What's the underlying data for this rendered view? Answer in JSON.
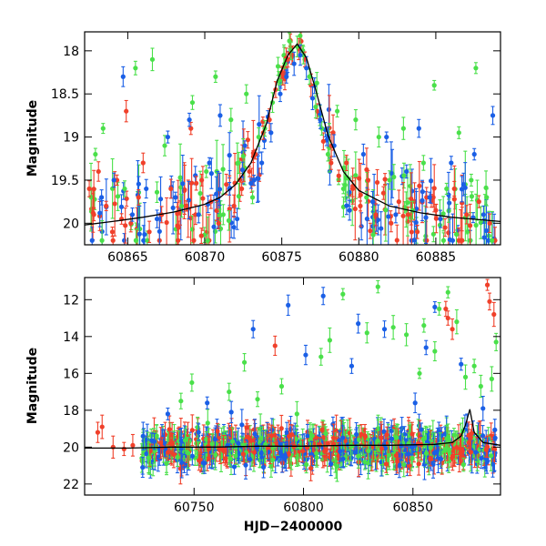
{
  "chart_data": [
    {
      "type": "scatter",
      "title": "",
      "xlabel": "",
      "ylabel": "Magnitude",
      "xlim": [
        60862.2,
        60889.2
      ],
      "ylim": [
        20.25,
        17.78
      ],
      "y_inverted": true,
      "x_ticks": [
        60865,
        60870,
        60875,
        60880,
        60885
      ],
      "y_ticks": [
        18,
        18.5,
        19,
        19.5,
        20
      ],
      "x_tick_labels": [
        "60865",
        "60870",
        "60875",
        "60880",
        "60885"
      ],
      "y_tick_labels": [
        "18",
        "18.5",
        "19",
        "19.5",
        "20"
      ],
      "grid": false,
      "colors": {
        "red": "#f0402a",
        "green": "#4ae04a",
        "blue": "#1a5fe6",
        "model": "#000000"
      },
      "model_curve": {
        "x": [
          60862.2,
          60864,
          60866,
          60868,
          60870,
          60871,
          60872,
          60873,
          60874,
          60874.7,
          60875.4,
          60876,
          60876.6,
          60877.2,
          60878,
          60879,
          60880,
          60882,
          60884,
          60886,
          60889.2
        ],
        "y": [
          20.02,
          19.98,
          19.93,
          19.87,
          19.78,
          19.7,
          19.55,
          19.3,
          18.85,
          18.35,
          18.05,
          17.92,
          18.08,
          18.45,
          18.98,
          19.4,
          19.62,
          19.8,
          19.88,
          19.93,
          19.98
        ]
      },
      "series": [
        {
          "color": "red",
          "points": [
            [
              60862.5,
              19.6
            ],
            [
              60862.8,
              19.9
            ],
            [
              60863.1,
              19.4
            ],
            [
              60863.6,
              19.8
            ],
            [
              60864.0,
              20.1
            ],
            [
              60864.3,
              19.5
            ],
            [
              60864.6,
              19.95
            ],
            [
              60865.2,
              20.0
            ],
            [
              60865.7,
              19.7
            ],
            [
              60866.0,
              19.3
            ],
            [
              60866.4,
              20.1
            ],
            [
              60867.2,
              19.9
            ],
            [
              60867.8,
              19.6
            ],
            [
              60868.3,
              20.05
            ],
            [
              60868.8,
              19.8
            ],
            [
              60869.4,
              19.9
            ],
            [
              60869.8,
              19.5
            ],
            [
              60870.4,
              19.75
            ],
            [
              60870.9,
              20.0
            ],
            [
              60871.4,
              19.55
            ],
            [
              60871.9,
              19.8
            ],
            [
              60872.4,
              19.6
            ],
            [
              60872.9,
              19.4
            ],
            [
              60873.3,
              19.2
            ],
            [
              60873.8,
              18.95
            ],
            [
              60874.2,
              18.8
            ],
            [
              60874.6,
              18.45
            ],
            [
              60875.0,
              18.25
            ],
            [
              60875.4,
              18.1
            ],
            [
              60875.7,
              18.05
            ],
            [
              60876.1,
              17.98
            ],
            [
              60876.5,
              18.1
            ],
            [
              60876.9,
              18.4
            ],
            [
              60877.3,
              18.7
            ],
            [
              60877.7,
              19.05
            ],
            [
              60878.2,
              19.3
            ],
            [
              60878.7,
              19.45
            ],
            [
              60879.2,
              19.3
            ],
            [
              60879.6,
              19.6
            ],
            [
              60880.1,
              19.8
            ],
            [
              60880.6,
              19.5
            ],
            [
              60881.1,
              19.9
            ],
            [
              60881.6,
              19.65
            ],
            [
              60882.1,
              20.0
            ],
            [
              60882.6,
              19.75
            ],
            [
              60883.2,
              19.9
            ],
            [
              60883.8,
              20.1
            ],
            [
              60884.4,
              19.7
            ],
            [
              60885.0,
              19.85
            ],
            [
              60885.6,
              20.05
            ],
            [
              60886.2,
              19.6
            ],
            [
              60887.0,
              19.9
            ],
            [
              60887.8,
              19.75
            ],
            [
              60888.5,
              20.0
            ],
            [
              60864.9,
              18.7
            ],
            [
              60869.1,
              18.9
            ]
          ]
        },
        {
          "color": "green",
          "points": [
            [
              60862.9,
              19.2
            ],
            [
              60863.4,
              18.9
            ],
            [
              60864.8,
              19.6
            ],
            [
              60865.5,
              18.2
            ],
            [
              60866.6,
              18.1
            ],
            [
              60867.4,
              19.1
            ],
            [
              60868.5,
              19.8
            ],
            [
              60869.2,
              18.6
            ],
            [
              60870.1,
              19.4
            ],
            [
              60870.7,
              18.3
            ],
            [
              60871.2,
              19.9
            ],
            [
              60871.7,
              18.8
            ],
            [
              60872.2,
              19.3
            ],
            [
              60872.7,
              18.5
            ],
            [
              60873.1,
              19.7
            ],
            [
              60873.5,
              19.0
            ],
            [
              60873.9,
              18.9
            ],
            [
              60874.4,
              18.6
            ],
            [
              60874.8,
              18.35
            ],
            [
              60875.2,
              18.15
            ],
            [
              60875.6,
              18.0
            ],
            [
              60876.0,
              17.95
            ],
            [
              60876.4,
              18.05
            ],
            [
              60876.8,
              18.3
            ],
            [
              60877.2,
              18.65
            ],
            [
              60877.6,
              18.9
            ],
            [
              60878.0,
              19.2
            ],
            [
              60878.6,
              18.7
            ],
            [
              60879.0,
              19.6
            ],
            [
              60879.8,
              18.8
            ],
            [
              60880.5,
              19.7
            ],
            [
              60881.3,
              19.0
            ],
            [
              60882.0,
              19.5
            ],
            [
              60882.9,
              18.9
            ],
            [
              60883.5,
              19.85
            ],
            [
              60884.2,
              19.3
            ],
            [
              60884.9,
              18.4
            ],
            [
              60885.7,
              19.6
            ],
            [
              60886.5,
              18.95
            ],
            [
              60887.3,
              19.5
            ],
            [
              60887.6,
              18.2
            ],
            [
              60888.3,
              19.7
            ]
          ]
        },
        {
          "color": "blue",
          "points": [
            [
              60863.3,
              19.7
            ],
            [
              60864.1,
              19.5
            ],
            [
              60864.7,
              18.3
            ],
            [
              60865.3,
              19.9
            ],
            [
              60866.2,
              19.6
            ],
            [
              60866.9,
              19.95
            ],
            [
              60867.6,
              19.0
            ],
            [
              60868.1,
              19.7
            ],
            [
              60869.0,
              18.8
            ],
            [
              60869.6,
              19.9
            ],
            [
              60870.3,
              19.3
            ],
            [
              60871.0,
              18.75
            ],
            [
              60871.6,
              19.6
            ],
            [
              60872.1,
              19.95
            ],
            [
              60872.6,
              19.1
            ],
            [
              60873.2,
              19.5
            ],
            [
              60873.7,
              19.3
            ],
            [
              60874.3,
              18.95
            ],
            [
              60874.9,
              18.5
            ],
            [
              60875.3,
              18.3
            ],
            [
              60875.8,
              18.15
            ],
            [
              60876.2,
              18.05
            ],
            [
              60876.6,
              18.2
            ],
            [
              60877.0,
              18.55
            ],
            [
              60877.5,
              18.8
            ],
            [
              60878.4,
              19.1
            ],
            [
              60879.4,
              19.85
            ],
            [
              60880.3,
              19.2
            ],
            [
              60880.9,
              19.75
            ],
            [
              60881.8,
              19.0
            ],
            [
              60882.4,
              19.9
            ],
            [
              60883.1,
              19.4
            ],
            [
              60883.9,
              18.9
            ],
            [
              60884.6,
              19.7
            ],
            [
              60885.3,
              19.95
            ],
            [
              60886.0,
              19.3
            ],
            [
              60886.8,
              19.55
            ],
            [
              60887.5,
              19.2
            ],
            [
              60888.1,
              19.9
            ],
            [
              60888.7,
              18.75
            ]
          ]
        }
      ]
    },
    {
      "type": "scatter",
      "title": "",
      "xlabel": "HJD−2400000",
      "ylabel": "Magnitude",
      "xlim": [
        60700,
        60890
      ],
      "ylim": [
        22.6,
        10.8
      ],
      "y_inverted": true,
      "x_ticks": [
        60750,
        60800,
        60850
      ],
      "y_ticks": [
        12,
        14,
        16,
        18,
        20,
        22
      ],
      "x_tick_labels": [
        "60750",
        "60800",
        "60850"
      ],
      "y_tick_labels": [
        "12",
        "14",
        "16",
        "18",
        "20",
        "22"
      ],
      "grid": false,
      "model_curve": {
        "x": [
          60700,
          60720,
          60740,
          60760,
          60780,
          60800,
          60820,
          60840,
          60860,
          60868,
          60872,
          60874,
          60876,
          60878,
          60882,
          60890
        ],
        "y": [
          20.05,
          20.05,
          20.0,
          20.0,
          19.95,
          19.95,
          19.9,
          19.9,
          19.85,
          19.75,
          19.4,
          18.8,
          17.95,
          19.2,
          19.75,
          19.9
        ]
      },
      "series": [
        {
          "color": "red",
          "points": [
            [
              60706,
              19.2
            ],
            [
              60708,
              18.9
            ],
            [
              60713,
              20.0
            ],
            [
              60718,
              20.1
            ],
            [
              60722,
              19.9
            ],
            [
              60787,
              14.5
            ],
            [
              60884,
              11.2
            ],
            [
              60885,
              12.1
            ],
            [
              60887,
              12.8
            ],
            [
              60865,
              12.5
            ],
            [
              60866,
              13.0
            ],
            [
              60868,
              13.6
            ]
          ]
        },
        {
          "color": "green",
          "points": [
            [
              60744,
              17.5
            ],
            [
              60749,
              16.5
            ],
            [
              60766,
              17.0
            ],
            [
              60773,
              15.4
            ],
            [
              60779,
              17.4
            ],
            [
              60790,
              16.7
            ],
            [
              60797,
              18.2
            ],
            [
              60808,
              15.1
            ],
            [
              60812,
              14.2
            ],
            [
              60818,
              11.7
            ],
            [
              60829,
              13.8
            ],
            [
              60834,
              11.3
            ],
            [
              60841,
              13.5
            ],
            [
              60847,
              13.9
            ],
            [
              60853,
              16.0
            ],
            [
              60855,
              13.4
            ],
            [
              60860,
              14.8
            ],
            [
              60862,
              12.5
            ],
            [
              60866,
              11.6
            ],
            [
              60870,
              13.2
            ],
            [
              60874,
              16.2
            ],
            [
              60878,
              15.6
            ],
            [
              60881,
              16.7
            ],
            [
              60886,
              16.3
            ],
            [
              60888,
              14.3
            ]
          ]
        },
        {
          "color": "blue",
          "points": [
            [
              60738,
              18.2
            ],
            [
              60756,
              17.6
            ],
            [
              60767,
              18.1
            ],
            [
              60777,
              13.6
            ],
            [
              60793,
              12.3
            ],
            [
              60801,
              15.0
            ],
            [
              60809,
              11.8
            ],
            [
              60822,
              15.6
            ],
            [
              60825,
              13.3
            ],
            [
              60837,
              13.6
            ],
            [
              60851,
              17.6
            ],
            [
              60856,
              14.6
            ],
            [
              60860,
              12.4
            ],
            [
              60872,
              15.5
            ],
            [
              60882,
              17.9
            ]
          ]
        }
      ],
      "dense_band": {
        "x_start": 60726,
        "x_end": 60888,
        "y_center": 20.0,
        "y_spread": 1.6
      }
    }
  ]
}
